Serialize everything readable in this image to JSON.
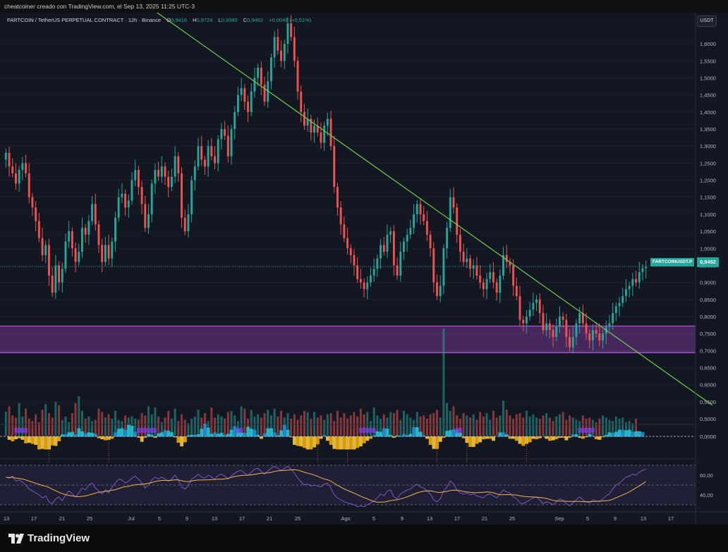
{
  "header": {
    "caption": "cheatcoiner creado con TradingView.com, el Sep 13, 2025 11:25 UTC-3"
  },
  "legend": {
    "symbol": "FARTCOIN / TetherUS PERPETUAL CONTRACT · 12h · Binance",
    "o_label": "O",
    "o_value": "0,9416",
    "h_label": "H",
    "h_value": "0,9724",
    "l_label": "L",
    "l_value": "0,9380",
    "c_label": "C",
    "c_value": "0,9462",
    "change": "+0,0048 (+0,51%)"
  },
  "currency_button": "USDT",
  "last_price": {
    "symbol_tag": "FARTCOINUSDT.P",
    "value": "0,9462"
  },
  "footer": {
    "brand": "TradingView"
  },
  "colors": {
    "up": "#26a69a",
    "down": "#ef5350",
    "trendline": "#6fcf4a",
    "zone": "#b44fd8",
    "background": "#131722"
  },
  "chart_data": [
    {
      "type": "candlestick",
      "title": "FARTCOIN / TetherUS PERPETUAL CONTRACT · 12h · Binance",
      "ylim": [
        0.44,
        1.65
      ],
      "y_ticks": [
        "1,6000",
        "1,5500",
        "1,5000",
        "1,4500",
        "1,4000",
        "1,3500",
        "1,3000",
        "1,2500",
        "1,2000",
        "1,1500",
        "1,1000",
        "1,0500",
        "1,0000",
        "0,9500",
        "0,9000",
        "0,8500",
        "0,8000",
        "0,7500",
        "0,7000",
        "0,6500",
        "0,6000",
        "0,5500",
        "0,5000"
      ],
      "x_ticks": [
        "13",
        "17",
        "21",
        "25",
        "Jul",
        "5",
        "9",
        "13",
        "17",
        "21",
        "25",
        "Ago",
        "5",
        "9",
        "13",
        "17",
        "21",
        "25",
        "Sep",
        "5",
        "9",
        "13",
        "17"
      ],
      "candles": [
        1.28,
        1.24,
        1.22,
        1.19,
        1.23,
        1.25,
        1.22,
        1.15,
        1.12,
        1.08,
        1.03,
        0.98,
        1.01,
        0.92,
        0.87,
        0.95,
        0.9,
        0.94,
        1.02,
        1.05,
        1.0,
        0.96,
        0.99,
        1.06,
        1.04,
        1.08,
        1.13,
        1.07,
        1.01,
        0.96,
        1.01,
        0.97,
        1.02,
        1.09,
        1.15,
        1.16,
        1.12,
        1.14,
        1.2,
        1.23,
        1.18,
        1.13,
        1.06,
        1.1,
        1.19,
        1.23,
        1.21,
        1.24,
        1.21,
        1.18,
        1.21,
        1.27,
        1.22,
        1.09,
        1.05,
        1.1,
        1.2,
        1.24,
        1.3,
        1.26,
        1.24,
        1.3,
        1.27,
        1.25,
        1.32,
        1.35,
        1.33,
        1.27,
        1.35,
        1.4,
        1.45,
        1.47,
        1.43,
        1.4,
        1.46,
        1.5,
        1.53,
        1.48,
        1.43,
        1.49,
        1.56,
        1.62,
        1.58,
        1.55,
        1.6,
        1.66,
        1.62,
        1.55,
        1.46,
        1.4,
        1.36,
        1.38,
        1.34,
        1.36,
        1.34,
        1.31,
        1.36,
        1.38,
        1.3,
        1.18,
        1.12,
        1.07,
        1.03,
        1.0,
        0.98,
        0.95,
        0.91,
        0.9,
        0.88,
        0.9,
        0.92,
        0.94,
        0.97,
        1.01,
        0.99,
        1.04,
        1.05,
        0.95,
        0.92,
        0.99,
        1.02,
        1.04,
        1.06,
        1.1,
        1.13,
        1.1,
        1.08,
        1.04,
        1.0,
        0.9,
        0.86,
        0.89,
        1.0,
        1.06,
        1.15,
        1.12,
        1.04,
        0.99,
        0.96,
        0.97,
        0.94,
        0.95,
        0.92,
        0.9,
        0.88,
        0.91,
        0.93,
        0.9,
        0.87,
        0.92,
        0.98,
        0.96,
        0.95,
        0.89,
        0.86,
        0.79,
        0.78,
        0.8,
        0.82,
        0.84,
        0.85,
        0.81,
        0.76,
        0.78,
        0.76,
        0.74,
        0.77,
        0.8,
        0.79,
        0.74,
        0.71,
        0.74,
        0.78,
        0.81,
        0.78,
        0.75,
        0.73,
        0.76,
        0.75,
        0.73,
        0.75,
        0.77,
        0.78,
        0.81,
        0.83,
        0.84,
        0.86,
        0.88,
        0.89,
        0.91,
        0.9,
        0.93,
        0.9416,
        0.9462
      ],
      "last": 0.9462,
      "support_zone": [
        0.694,
        0.772
      ],
      "trendline": {
        "from": {
          "x_index": 40,
          "price": 1.73
        },
        "to": {
          "x_index": 213,
          "price": 0.54
        }
      },
      "volume": [
        2.1,
        2.6,
        1.8,
        1.6,
        2.9,
        1.7,
        2.4,
        1.5,
        1.3,
        1.9,
        1.2,
        2.3,
        2.8,
        2.0,
        1.6,
        3.0,
        2.7,
        1.4,
        1.7,
        1.2,
        2.0,
        2.9,
        3.5,
        2.2,
        1.5,
        1.7,
        1.3,
        1.4,
        2.4,
        2.1,
        1.6,
        1.9,
        1.5,
        2.2,
        1.4,
        1.3,
        1.8,
        1.6,
        1.7,
        1.5,
        1.4,
        2.0,
        1.8,
        2.6,
        1.9,
        2.5,
        1.7,
        1.2,
        1.6,
        2.2,
        1.5,
        2.4,
        1.3,
        1.9,
        1.4,
        1.1,
        1.5,
        1.7,
        2.3,
        1.6,
        2.0,
        1.3,
        2.5,
        1.6,
        1.9,
        1.7,
        1.5,
        2.1,
        2.2,
        1.8,
        1.3,
        2.6,
        2.4,
        1.5,
        2.3,
        1.7,
        1.9,
        1.6,
        2.0,
        2.3,
        1.8,
        2.4,
        1.7,
        2.2,
        1.6,
        2.0,
        1.5,
        1.9,
        1.4,
        1.8,
        2.2,
        2.1,
        1.5,
        2.1,
        1.6,
        1.8,
        1.4,
        1.9,
        2.0,
        1.3,
        2.2,
        1.6,
        2.0,
        1.5,
        1.8,
        2.1,
        1.7,
        2.4,
        1.9,
        2.1,
        1.3,
        2.5,
        1.8,
        1.5,
        1.9,
        1.6,
        2.1,
        2.0,
        2.3,
        1.4,
        2.2,
        1.9,
        1.6,
        1.4,
        2.1,
        1.7,
        1.8,
        1.5,
        1.9,
        2.0,
        2.3,
        1.6,
        9.5,
        2.9,
        2.2,
        2.6,
        1.8,
        1.5,
        2.0,
        1.8,
        1.6,
        1.9,
        1.4,
        2.1,
        1.7,
        2.0,
        1.4,
        2.2,
        1.6,
        1.8,
        3.1,
        2.3,
        1.8,
        1.5,
        1.9,
        2.0,
        1.6,
        2.2,
        1.7,
        1.9,
        1.6,
        1.5,
        1.8,
        2.0,
        1.6,
        1.3,
        1.7,
        1.9,
        2.1,
        1.4,
        1.8,
        1.6,
        1.4,
        1.3,
        1.8,
        1.5,
        1.6,
        1.4,
        1.2,
        1.5,
        1.8,
        1.6,
        1.4,
        1.3,
        1.7,
        1.5,
        1.6,
        1.2,
        1.3,
        1.1,
        1.5
      ]
    },
    {
      "type": "area",
      "y_ticks": [
        "0,0000"
      ]
    },
    {
      "type": "line",
      "series": [
        {
          "values": [
            58,
            57,
            59,
            54,
            55,
            53,
            50,
            46,
            44,
            42,
            40,
            37,
            39,
            33,
            31,
            36,
            38,
            34,
            40,
            44,
            41,
            38,
            42,
            47,
            45,
            50,
            52,
            47,
            44,
            41,
            45,
            42,
            48,
            52,
            56,
            55,
            52,
            54,
            57,
            59,
            56,
            52,
            47,
            50,
            55,
            58,
            56,
            58,
            56,
            54,
            56,
            60,
            55,
            48,
            46,
            49,
            56,
            58,
            61,
            58,
            57,
            60,
            58,
            56,
            60,
            61,
            59,
            56,
            59,
            62,
            64,
            65,
            62,
            60,
            63,
            66,
            67,
            64,
            61,
            64,
            67,
            69,
            67,
            65,
            67,
            69,
            66,
            62,
            57,
            53,
            50,
            51,
            49,
            50,
            49,
            48,
            51,
            52,
            47,
            40,
            37,
            35,
            33,
            32,
            31,
            30,
            28,
            29,
            28,
            30,
            32,
            34,
            37,
            41,
            39,
            44,
            45,
            38,
            36,
            41,
            43,
            45,
            46,
            49,
            51,
            48,
            47,
            44,
            41,
            35,
            33,
            36,
            44,
            48,
            54,
            51,
            45,
            42,
            41,
            42,
            40,
            41,
            39,
            38,
            37,
            40,
            41,
            39,
            37,
            41,
            45,
            43,
            42,
            38,
            36,
            32,
            31,
            33,
            35,
            37,
            38,
            35,
            31,
            33,
            32,
            30,
            33,
            36,
            35,
            31,
            29,
            32,
            35,
            38,
            35,
            33,
            32,
            35,
            34,
            33,
            36,
            39,
            41,
            46,
            50,
            52,
            55,
            58,
            59,
            61,
            60,
            63,
            65,
            66
          ]
        }
      ],
      "y_ticks": [
        "60,00",
        "40,00"
      ]
    }
  ]
}
